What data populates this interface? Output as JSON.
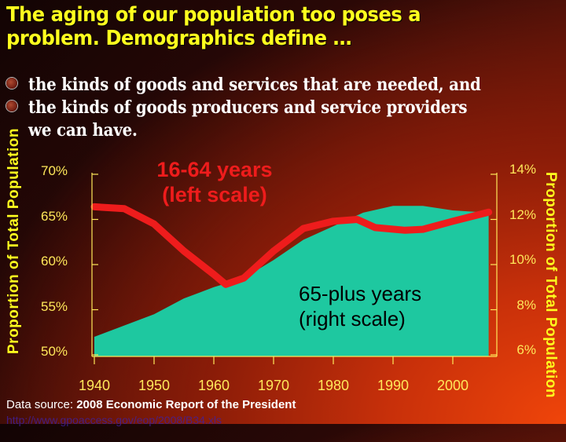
{
  "slide": {
    "title_line1": "The aging of our population too poses a",
    "title_line2": "problem. Demographics define …",
    "bullets": [
      {
        "text": "the kinds of goods and services that are needed, and",
        "icon": "bullet-icon"
      },
      {
        "text": "the kinds of goods producers and service providers",
        "icon": "bullet-icon"
      },
      {
        "text": "we can have.",
        "icon": "none"
      }
    ],
    "source_prefix": "Data source: ",
    "source_bold": "2008 Economic Report of the President",
    "source_url": "http://www.gpoaccess.gov/eop/2008/B34.xls"
  },
  "colors": {
    "title": "#ffff1e",
    "axis": "#ffe85a",
    "line_16_64": "#ee1c1c",
    "area_65_plus": "#1ec8a0",
    "background_dark": "#1a0504",
    "background_bright": "#f0450a"
  },
  "chart_data": {
    "type": "line+area",
    "title": "",
    "xlabel": "",
    "ylabel_left": "Proportion of Total Population",
    "ylabel_right": "Proportion of Total Population",
    "x_ticks": [
      "1940",
      "1950",
      "1960",
      "1970",
      "1980",
      "1990",
      "2000"
    ],
    "y_left_ticks": [
      "70%",
      "65%",
      "60%",
      "55%",
      "50%"
    ],
    "y_right_ticks": [
      "14%",
      "12%",
      "10%",
      "8%",
      "6%"
    ],
    "ylim_left": [
      50,
      70
    ],
    "ylim_right": [
      6,
      14
    ],
    "grid": false,
    "annotations": [
      {
        "text_line1": "16-64 years",
        "text_line2": "(left scale)",
        "series": "16-64"
      },
      {
        "text_line1": "65-plus years",
        "text_line2": "(right scale)",
        "series": "65+"
      }
    ],
    "series": [
      {
        "name": "16-64 years (left scale)",
        "type": "line",
        "axis": "left",
        "x": [
          1940,
          1945,
          1950,
          1955,
          1960,
          1962,
          1965,
          1970,
          1975,
          1980,
          1984,
          1987,
          1992,
          1995,
          2000,
          2006
        ],
        "values": [
          66.4,
          66.2,
          64.5,
          61.5,
          58.9,
          57.8,
          58.5,
          61.5,
          64.0,
          64.8,
          65.0,
          64.1,
          63.8,
          63.9,
          64.8,
          65.8
        ]
      },
      {
        "name": "65-plus years (right scale)",
        "type": "area",
        "axis": "right",
        "x": [
          1940,
          1945,
          1950,
          1955,
          1960,
          1965,
          1970,
          1975,
          1980,
          1985,
          1990,
          1995,
          2000,
          2006
        ],
        "values": [
          6.8,
          7.3,
          7.8,
          8.5,
          9.0,
          9.4,
          10.2,
          11.1,
          11.7,
          12.3,
          12.6,
          12.6,
          12.4,
          12.3
        ]
      }
    ]
  }
}
